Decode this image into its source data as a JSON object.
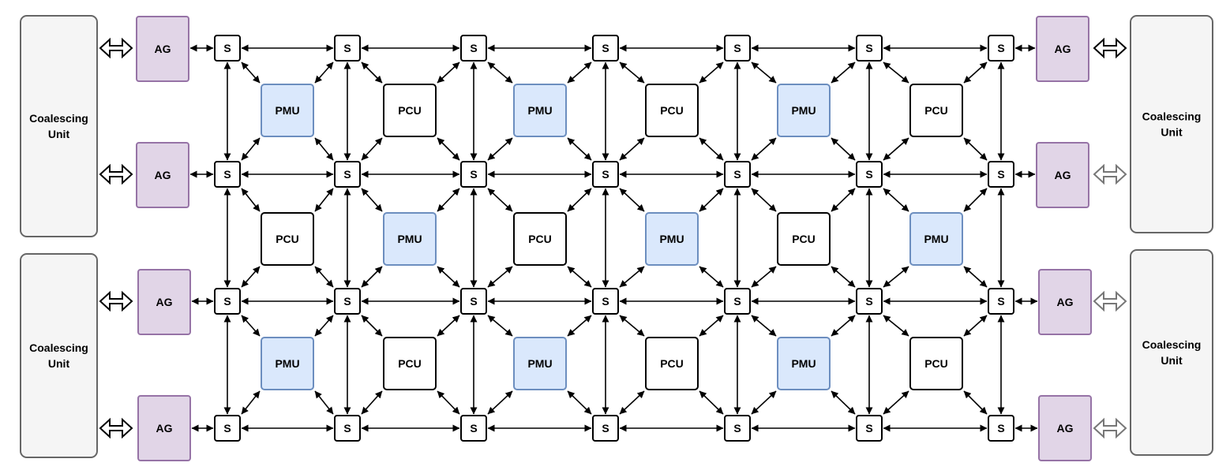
{
  "diagram": {
    "labels": {
      "switch": "S",
      "pmu": "PMU",
      "pcu": "PCU",
      "ag": "AG",
      "coalescing_line1": "Coalescing",
      "coalescing_line2": "Unit"
    },
    "unit_rows": [
      [
        "PMU",
        "PCU",
        "PMU",
        "PCU",
        "PMU",
        "PCU"
      ],
      [
        "PCU",
        "PMU",
        "PCU",
        "PMU",
        "PCU",
        "PMU"
      ],
      [
        "PMU",
        "PCU",
        "PMU",
        "PCU",
        "PMU",
        "PCU"
      ]
    ],
    "switch_grid": {
      "rows": 4,
      "cols": 7
    },
    "colors": {
      "pmu_fill": "#dae8fc",
      "pmu_stroke": "#6c8ebf",
      "pcu_fill": "#ffffff",
      "pcu_stroke": "#000000",
      "ag_fill": "#e1d5e7",
      "ag_stroke": "#9673a6",
      "cu_fill": "#f5f5f5",
      "cu_stroke": "#666666",
      "switch_stroke": "#000000",
      "wire": "#000000",
      "hollow_arrow_dark": "#000000",
      "hollow_arrow_light": "#777777"
    }
  }
}
